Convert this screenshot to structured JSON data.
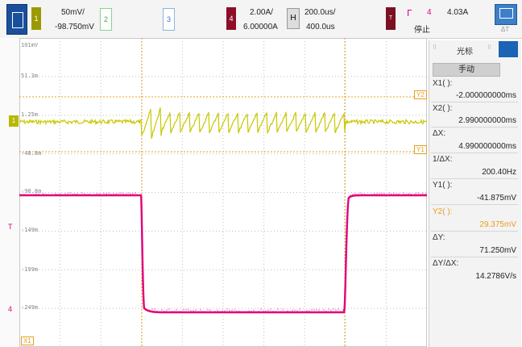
{
  "channels": {
    "ch1": {
      "number": "1",
      "scale": "50mV/",
      "offset": "-98.750mV",
      "color": "#c8c800"
    },
    "ch2": {
      "number": "2"
    },
    "ch3": {
      "number": "3"
    },
    "ch4": {
      "number": "4",
      "scale": "2.00A/",
      "offset": "6.00000A",
      "color": "#e0007a"
    }
  },
  "timebase": {
    "mode": "H",
    "scale": "200.0us/",
    "position": "400.0us"
  },
  "trigger": {
    "badge": "T",
    "source": "4",
    "level": "4.03A",
    "status": "停止"
  },
  "plot": {
    "y_labels": [
      "101mV",
      "51.3m",
      "1.25m",
      "-48.8m",
      "-98.8m",
      "-149m",
      "-199m",
      "-249m"
    ],
    "cursor_tags": {
      "x1": "X1",
      "y1": "Y1",
      "y2": "Y2"
    }
  },
  "cursor_panel": {
    "title": "光标",
    "mode_button": "手动",
    "x1_label": "X1( ):",
    "x1_value": "-2.000000000ms",
    "x2_label": "X2( ):",
    "x2_value": "2.990000000ms",
    "dx_label": "ΔX:",
    "dx_value": "4.990000000ms",
    "inv_dx_label": "1/ΔX:",
    "inv_dx_value": "200.40Hz",
    "y1_label": "Y1( ):",
    "y1_value": "-41.875mV",
    "y2_label": "Y2( ):",
    "y2_value": "29.375mV",
    "dy_label": "ΔY:",
    "dy_value": "71.250mV",
    "dydx_label": "ΔY/ΔX:",
    "dydx_value": "14.2786V/s"
  },
  "colors": {
    "ch1": "#c8c800",
    "ch4": "#e0007a",
    "cursor": "#e6a020",
    "accent": "#1a63b5"
  }
}
